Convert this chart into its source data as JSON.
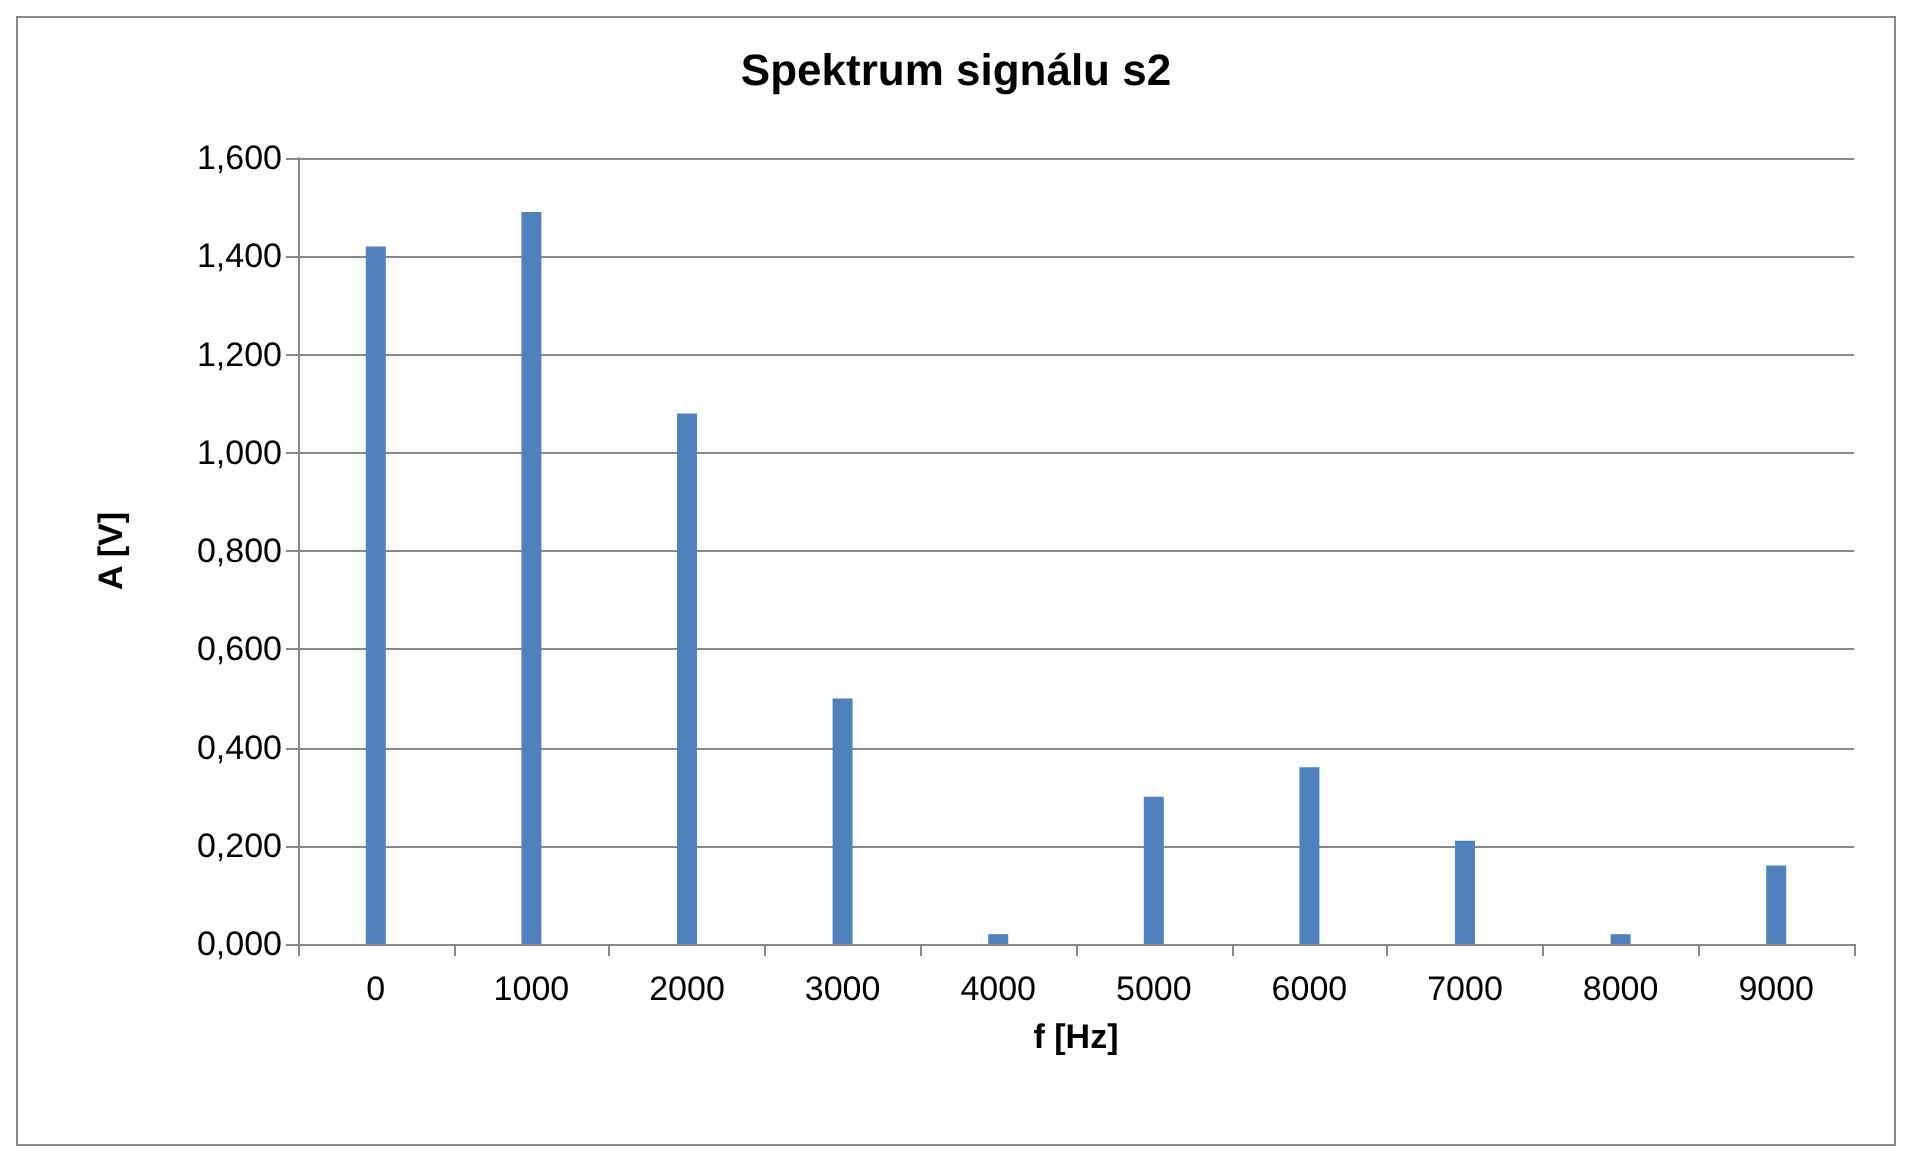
{
  "chart_data": {
    "type": "bar",
    "title": "Spektrum signálu s2",
    "xlabel": "f [Hz]",
    "ylabel": "A [V]",
    "categories": [
      "0",
      "1000",
      "2000",
      "3000",
      "4000",
      "5000",
      "6000",
      "7000",
      "8000",
      "9000"
    ],
    "values": [
      1.42,
      1.49,
      1.08,
      0.5,
      0.02,
      0.3,
      0.36,
      0.21,
      0.02,
      0.16
    ],
    "color": "#4f81bd",
    "ylim": [
      0,
      1.6
    ],
    "yticks": [
      {
        "value": 0,
        "label": "0,000"
      },
      {
        "value": 0.2,
        "label": "0,200"
      },
      {
        "value": 0.4,
        "label": "0,400"
      },
      {
        "value": 0.6,
        "label": "0,600"
      },
      {
        "value": 0.8,
        "label": "0,800"
      },
      {
        "value": 1,
        "label": "1,000"
      },
      {
        "value": 1.2,
        "label": "1,200"
      },
      {
        "value": 1.4,
        "label": "1,400"
      },
      {
        "value": 1.6,
        "label": "1,600"
      }
    ],
    "grid": "y"
  }
}
